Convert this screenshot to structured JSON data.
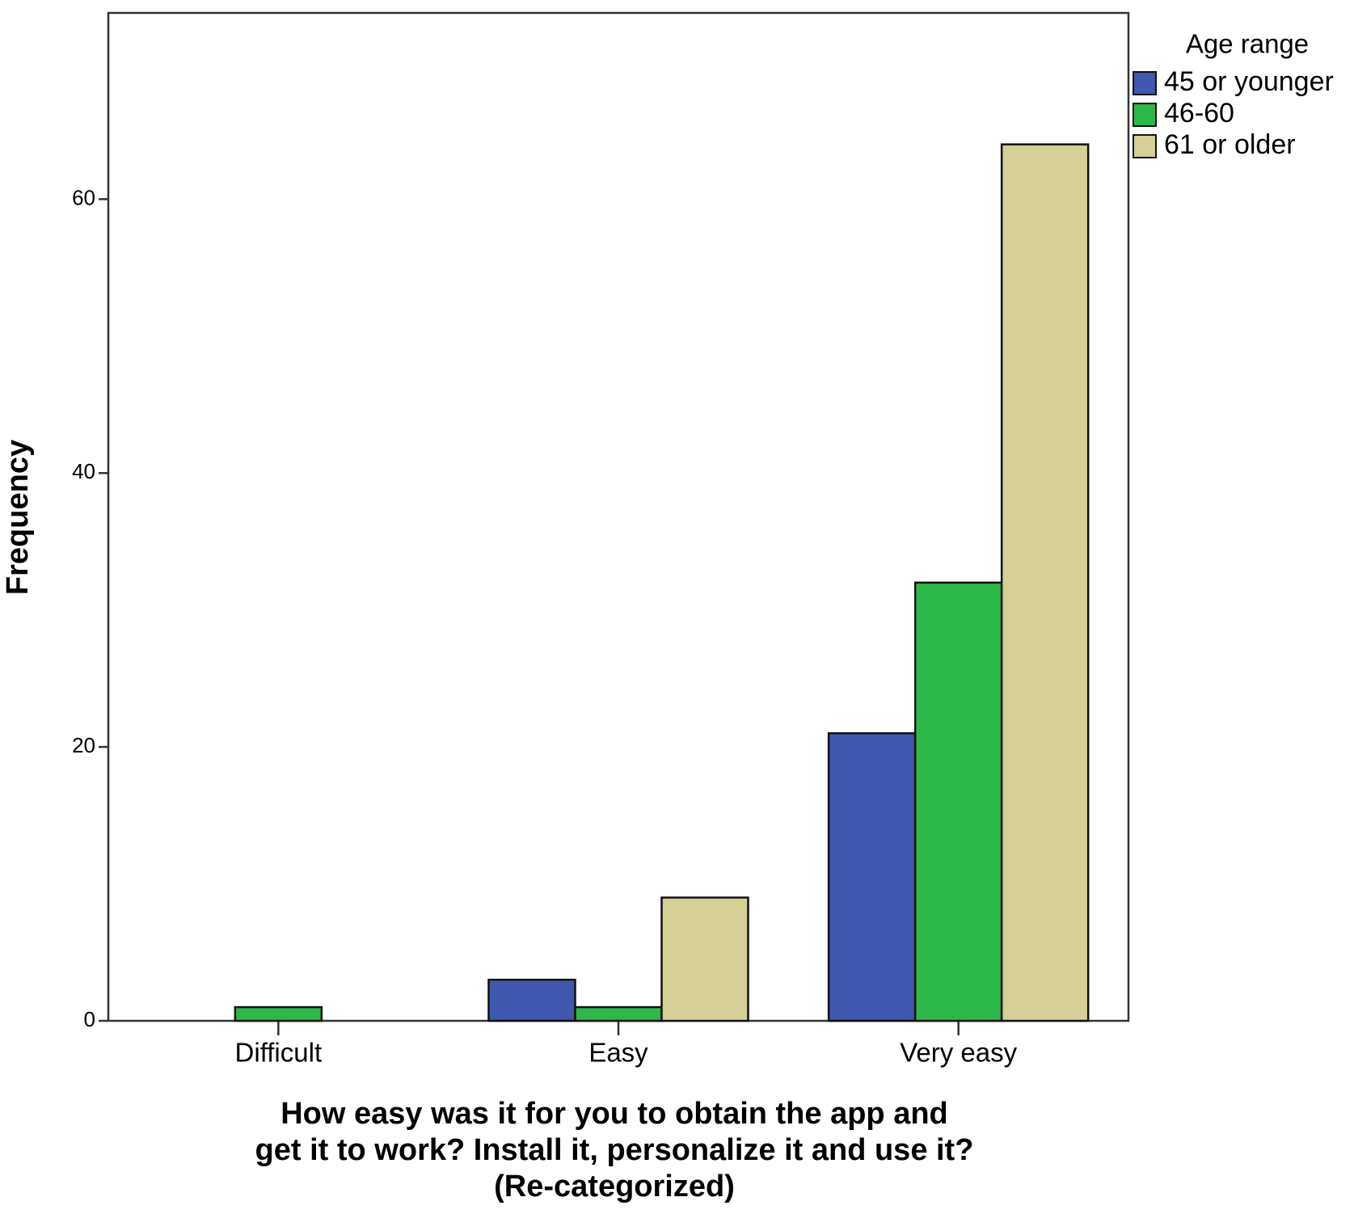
{
  "chart_data": {
    "type": "bar",
    "x_label": [
      "How easy was it for you to obtain the app and",
      "get it to work? Install it, personalize it and use it?",
      "(Re-categorized)"
    ],
    "y_label": "Frequency",
    "legend_title": "Age range",
    "legend_position": "right",
    "categories": [
      "Difficult",
      "Easy",
      "Very easy"
    ],
    "series": [
      {
        "name": "45 or younger",
        "color": "#3f58ad",
        "values": [
          0,
          3,
          21
        ]
      },
      {
        "name": "46-60",
        "color": "#2db84a",
        "values": [
          1,
          1,
          32
        ]
      },
      {
        "name": "61 or older",
        "color": "#d5cf98",
        "values": [
          0,
          9,
          64
        ]
      }
    ],
    "ylim": [
      0,
      73.6
    ],
    "yticks": [
      0,
      20,
      40,
      60
    ],
    "grid": false
  }
}
